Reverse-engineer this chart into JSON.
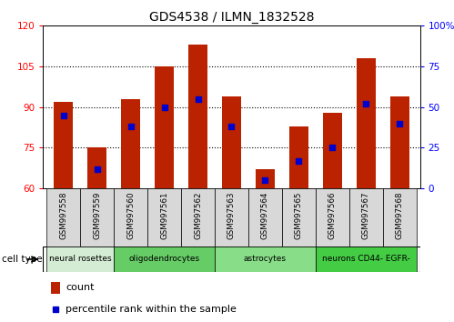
{
  "title": "GDS4538 / ILMN_1832528",
  "samples": [
    "GSM997558",
    "GSM997559",
    "GSM997560",
    "GSM997561",
    "GSM997562",
    "GSM997563",
    "GSM997564",
    "GSM997565",
    "GSM997566",
    "GSM997567",
    "GSM997568"
  ],
  "count_values": [
    92,
    75,
    93,
    105,
    113,
    94,
    67,
    83,
    88,
    108,
    94
  ],
  "percentile_values": [
    45,
    12,
    38,
    50,
    55,
    38,
    5,
    17,
    25,
    52,
    40
  ],
  "ylim_left": [
    60,
    120
  ],
  "ylim_right": [
    0,
    100
  ],
  "left_ticks": [
    60,
    75,
    90,
    105,
    120
  ],
  "right_ticks": [
    0,
    25,
    50,
    75,
    100
  ],
  "right_tick_labels": [
    "0",
    "25",
    "50",
    "75",
    "100%"
  ],
  "bar_color": "#bb2200",
  "percentile_color": "#0000cc",
  "groups": [
    {
      "label": "neural rosettes",
      "start": 0,
      "end": 1,
      "color": "#d4ecd4"
    },
    {
      "label": "oligodendrocytes",
      "start": 2,
      "end": 4,
      "color": "#66cc66"
    },
    {
      "label": "astrocytes",
      "start": 5,
      "end": 7,
      "color": "#88dd88"
    },
    {
      "label": "neurons CD44- EGFR-",
      "start": 8,
      "end": 10,
      "color": "#44cc44"
    }
  ],
  "cell_type_label": "cell type",
  "legend_count": "count",
  "legend_percentile": "percentile rank within the sample",
  "sample_box_color": "#d8d8d8",
  "bar_width": 0.55
}
